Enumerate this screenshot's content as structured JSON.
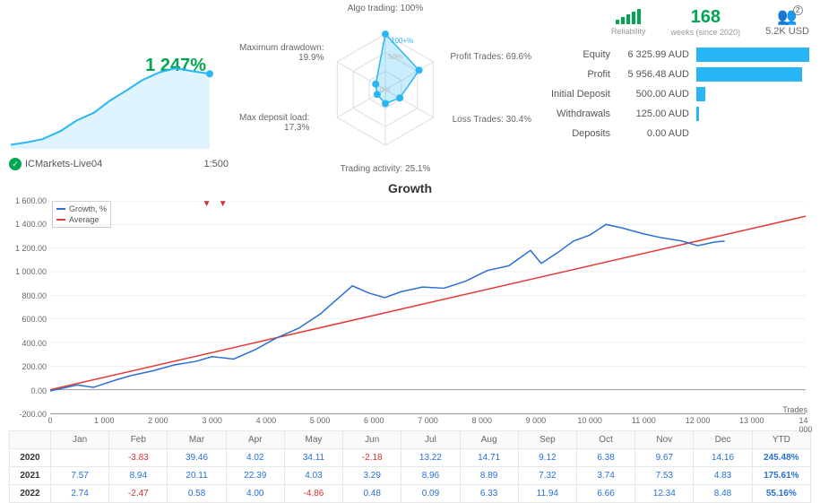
{
  "equity_chart": {
    "big_pct": "1 247%",
    "account": "ICMarkets-Live04",
    "leverage": "1:500",
    "line_color": "#29b6f6",
    "fill_color": "rgba(41,182,246,0.15)",
    "points": [
      [
        0,
        0.05
      ],
      [
        0.08,
        0.08
      ],
      [
        0.16,
        0.12
      ],
      [
        0.25,
        0.22
      ],
      [
        0.33,
        0.35
      ],
      [
        0.42,
        0.45
      ],
      [
        0.5,
        0.6
      ],
      [
        0.58,
        0.72
      ],
      [
        0.66,
        0.85
      ],
      [
        0.75,
        0.95
      ],
      [
        0.83,
        1.0
      ],
      [
        0.92,
        0.96
      ],
      [
        1.0,
        0.93
      ]
    ]
  },
  "radar": {
    "labels": {
      "top": "Algo trading: 100%",
      "right_up": "Profit Trades: 69.6%",
      "right_down": "Loss Trades: 30.4%",
      "bottom": "Trading activity: 25.1%",
      "left_down": "Max deposit load:\n17.3%",
      "left_up": "Maximum drawdown:\n19.9%"
    },
    "inner_text": "100+%",
    "inner_text2": "50%",
    "inner_text3": "0%",
    "values": [
      1.0,
      0.7,
      0.3,
      0.25,
      0.17,
      0.2
    ],
    "fill_color": "rgba(41,182,246,0.25)",
    "stroke_color": "#29b6f6",
    "grid_color": "#dddddd",
    "dot_color": "#29b6f6"
  },
  "stats": {
    "reliability_label": "Reliability",
    "weeks": "168",
    "weeks_label": "weeks (since 2020)",
    "subs": "5.2K USD",
    "subs_badge": "2",
    "rows": [
      {
        "label": "Equity",
        "value": "6 325.99 AUD",
        "bar": 1.0
      },
      {
        "label": "Profit",
        "value": "5 956.48 AUD",
        "bar": 0.94
      },
      {
        "label": "Initial Deposit",
        "value": "500.00 AUD",
        "bar": 0.08
      },
      {
        "label": "Withdrawals",
        "value": "125.00 AUD",
        "bar": 0.02
      },
      {
        "label": "Deposits",
        "value": "0.00 AUD",
        "bar": 0.0
      }
    ],
    "bar_color": "#29b6f6"
  },
  "growth": {
    "title": "Growth",
    "legend": [
      {
        "label": "Growth, %",
        "color": "#2b6fd4"
      },
      {
        "label": "Average",
        "color": "#e53935"
      }
    ],
    "ylim": [
      -200,
      1600
    ],
    "ytick_step": 200,
    "xlim": [
      0,
      14000
    ],
    "xtick_step": 1000,
    "xlabel": "Trades",
    "grid_color": "#e0e0e0",
    "line_color": "#2b6fd4",
    "avg_color": "#e53935",
    "markers": [
      2900,
      3200
    ],
    "avg_line": [
      [
        0,
        0
      ],
      [
        14000,
        1470
      ]
    ],
    "series": [
      [
        0,
        -10
      ],
      [
        200,
        10
      ],
      [
        500,
        40
      ],
      [
        800,
        20
      ],
      [
        1200,
        80
      ],
      [
        1500,
        120
      ],
      [
        1900,
        160
      ],
      [
        2300,
        210
      ],
      [
        2700,
        240
      ],
      [
        3000,
        280
      ],
      [
        3400,
        260
      ],
      [
        3800,
        340
      ],
      [
        4200,
        440
      ],
      [
        4600,
        520
      ],
      [
        5000,
        640
      ],
      [
        5300,
        760
      ],
      [
        5600,
        880
      ],
      [
        5900,
        820
      ],
      [
        6200,
        780
      ],
      [
        6500,
        830
      ],
      [
        6900,
        870
      ],
      [
        7300,
        860
      ],
      [
        7700,
        920
      ],
      [
        8100,
        1010
      ],
      [
        8500,
        1050
      ],
      [
        8900,
        1180
      ],
      [
        9100,
        1070
      ],
      [
        9400,
        1160
      ],
      [
        9700,
        1260
      ],
      [
        10000,
        1310
      ],
      [
        10300,
        1400
      ],
      [
        10600,
        1370
      ],
      [
        11000,
        1320
      ],
      [
        11300,
        1290
      ],
      [
        11700,
        1260
      ],
      [
        12000,
        1220
      ],
      [
        12300,
        1250
      ],
      [
        12500,
        1260
      ]
    ]
  },
  "months_table": {
    "months": [
      "Jan",
      "Feb",
      "Mar",
      "Apr",
      "May",
      "Jun",
      "Jul",
      "Aug",
      "Sep",
      "Oct",
      "Nov",
      "Dec",
      "YTD"
    ],
    "rows": [
      {
        "year": "2020",
        "cells": [
          "",
          "-3.83",
          "39.46",
          "4.02",
          "34.11",
          "-2.18",
          "13.22",
          "14.71",
          "9.12",
          "6.38",
          "9.67",
          "14.16",
          "245.48%"
        ]
      },
      {
        "year": "2021",
        "cells": [
          "7.57",
          "8.94",
          "20.11",
          "22.39",
          "4.03",
          "3.29",
          "8.96",
          "8.89",
          "7.32",
          "3.74",
          "7.53",
          "4.83",
          "175.61%"
        ]
      },
      {
        "year": "2022",
        "cells": [
          "2.74",
          "-2.47",
          "0.58",
          "4.00",
          "-4.86",
          "0.48",
          "0.09",
          "6.33",
          "11.94",
          "6.66",
          "12.34",
          "8.48",
          "55.16%"
        ]
      }
    ]
  }
}
